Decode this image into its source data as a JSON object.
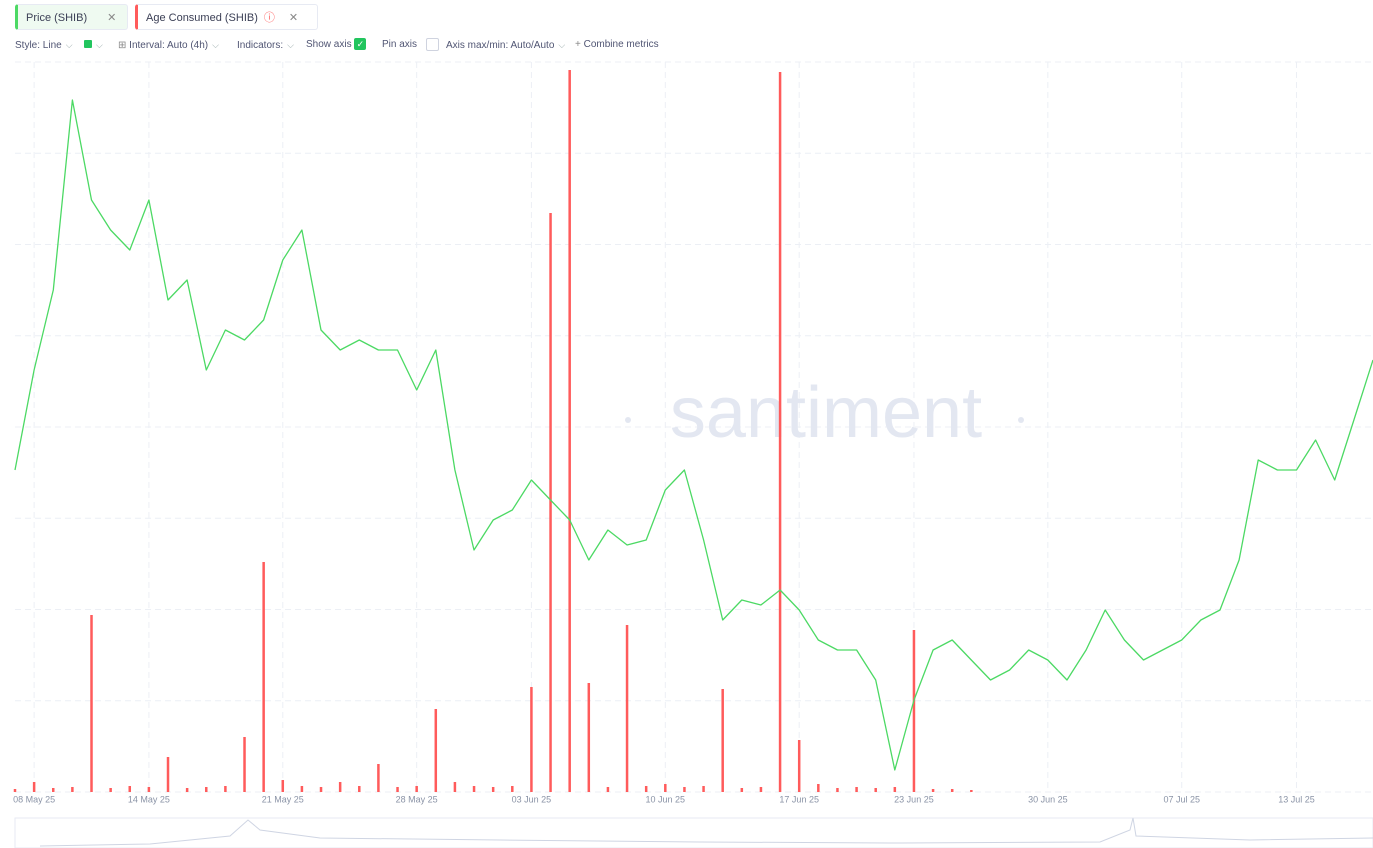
{
  "toolbar": {
    "style": "Style: Line",
    "interval": "Interval: Auto (4h)",
    "indicators": "Indicators:",
    "show_axis": "Show axis",
    "pin_axis": "Pin axis",
    "axis_minmax": "Axis max/min: Auto/Auto",
    "combine": "Combine metrics"
  },
  "watermark": "santiment",
  "chart_data": {
    "type": "line",
    "x": [
      "2025-05-07",
      "2025-05-08",
      "2025-05-09",
      "2025-05-10",
      "2025-05-11",
      "2025-05-12",
      "2025-05-13",
      "2025-05-14",
      "2025-05-15",
      "2025-05-16",
      "2025-05-17",
      "2025-05-18",
      "2025-05-19",
      "2025-05-20",
      "2025-05-21",
      "2025-05-22",
      "2025-05-23",
      "2025-05-24",
      "2025-05-25",
      "2025-05-26",
      "2025-05-27",
      "2025-05-28",
      "2025-05-29",
      "2025-05-30",
      "2025-05-31",
      "2025-06-01",
      "2025-06-02",
      "2025-06-03",
      "2025-06-04",
      "2025-06-05",
      "2025-06-06",
      "2025-06-07",
      "2025-06-08",
      "2025-06-09",
      "2025-06-10",
      "2025-06-11",
      "2025-06-12",
      "2025-06-13",
      "2025-06-14",
      "2025-06-15",
      "2025-06-16",
      "2025-06-17",
      "2025-06-18",
      "2025-06-19",
      "2025-06-20",
      "2025-06-21",
      "2025-06-22",
      "2025-06-23",
      "2025-06-24",
      "2025-06-25",
      "2025-06-26",
      "2025-06-27",
      "2025-06-28",
      "2025-06-29",
      "2025-06-30",
      "2025-07-01",
      "2025-07-02",
      "2025-07-03",
      "2025-07-04",
      "2025-07-05",
      "2025-07-06",
      "2025-07-07",
      "2025-07-08",
      "2025-07-09",
      "2025-07-10",
      "2025-07-11",
      "2025-07-12",
      "2025-07-13",
      "2025-07-14",
      "2025-07-15",
      "2025-07-16",
      "2025-07-17"
    ],
    "series": [
      {
        "name": "Price (SHIB)",
        "color": "#4cd964",
        "values": [
          1.322e-05,
          1.422e-05,
          1.502e-05,
          1.692e-05,
          1.592e-05,
          1.562e-05,
          1.542e-05,
          1.592e-05,
          1.492e-05,
          1.512e-05,
          1.422e-05,
          1.462e-05,
          1.452e-05,
          1.472e-05,
          1.532e-05,
          1.562e-05,
          1.462e-05,
          1.442e-05,
          1.452e-05,
          1.442e-05,
          1.442e-05,
          1.402e-05,
          1.442e-05,
          1.322e-05,
          1.242e-05,
          1.272e-05,
          1.282e-05,
          1.312e-05,
          1.292e-05,
          1.272e-05,
          1.232e-05,
          1.262e-05,
          1.247e-05,
          1.252e-05,
          1.302e-05,
          1.322e-05,
          1.252e-05,
          1.172e-05,
          1.192e-05,
          1.187e-05,
          1.202e-05,
          1.182e-05,
          1.152e-05,
          1.142e-05,
          1.142e-05,
          1.112e-05,
          1.022e-05,
          1.092e-05,
          1.142e-05,
          1.152e-05,
          1.132e-05,
          1.112e-05,
          1.122e-05,
          1.142e-05,
          1.132e-05,
          1.112e-05,
          1.142e-05,
          1.182e-05,
          1.152e-05,
          1.132e-05,
          1.142e-05,
          1.152e-05,
          1.172e-05,
          1.182e-05,
          1.232e-05,
          1.332e-05,
          1.322e-05,
          1.322e-05,
          1.352e-05,
          1.312e-05,
          1.372e-05,
          1.432e-05
        ]
      },
      {
        "name": "Age Consumed (SHIB)",
        "color": "#ff5b5b",
        "type": "bar",
        "axis": "y2",
        "values": [
          3,
          10,
          4,
          5,
          177,
          4,
          6,
          5,
          35,
          4,
          5,
          6,
          55,
          230,
          12,
          6,
          5,
          10,
          6,
          28,
          5,
          6,
          83,
          10,
          6,
          5,
          6,
          105,
          579,
          722,
          109,
          5,
          167,
          6,
          8,
          5,
          6,
          103,
          4,
          5,
          720,
          52,
          8,
          4,
          5,
          4,
          5,
          162,
          3,
          3,
          2,
          null,
          null,
          null,
          null,
          null,
          null,
          null,
          null,
          null,
          null,
          null,
          null,
          null,
          null,
          null,
          null,
          null,
          null,
          null,
          null,
          null
        ]
      }
    ],
    "xlim": [
      "2025-05-07",
      "2025-07-17"
    ],
    "xticks": [
      {
        "value": "2025-05-08",
        "label": "08 May 25"
      },
      {
        "value": "2025-05-14",
        "label": "14 May 25"
      },
      {
        "value": "2025-05-21",
        "label": "21 May 25"
      },
      {
        "value": "2025-05-28",
        "label": "28 May 25"
      },
      {
        "value": "2025-06-03",
        "label": "03 Jun 25"
      },
      {
        "value": "2025-06-10",
        "label": "10 Jun 25"
      },
      {
        "value": "2025-06-17",
        "label": "17 Jun 25"
      },
      {
        "value": "2025-06-23",
        "label": "23 Jun 25"
      },
      {
        "value": "2025-06-30",
        "label": "30 Jun 25"
      },
      {
        "value": "2025-07-07",
        "label": "07 Jul 25"
      },
      {
        "value": "2025-07-13",
        "label": "13 Jul 25"
      }
    ],
    "ylim": [
      1e-05,
      1.73e-05
    ],
    "y2lim": [
      0,
      730
    ],
    "grid": true
  }
}
